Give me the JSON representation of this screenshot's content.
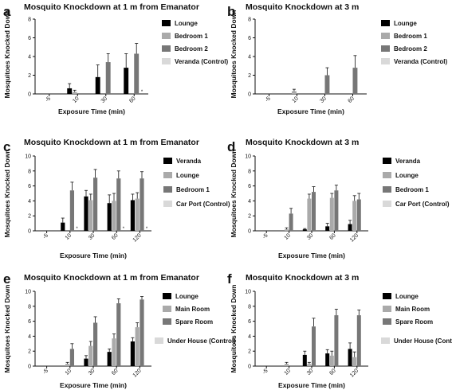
{
  "chart_data": [
    {
      "panel": "a",
      "type": "bar",
      "title": "Mosquito Knockdown at 1 m from Emanator",
      "xlabel": "Exposure Time (min)",
      "ylabel": "Mosquitoes Knocked Down",
      "categories": [
        "-5",
        "10",
        "30",
        "60"
      ],
      "ylim": [
        0,
        8
      ],
      "yticks": [
        "0",
        "2",
        "4",
        "6",
        "8"
      ],
      "series": [
        {
          "name": "Lounge",
          "color": "#000000",
          "values": [
            0,
            0.6,
            1.8,
            2.8
          ],
          "errors": [
            0,
            0.5,
            1.3,
            1.5
          ]
        },
        {
          "name": "Bedroom 1",
          "color": "#aaaaaa",
          "values": [
            0,
            0.2,
            0,
            0
          ],
          "errors": [
            0,
            0.2,
            0,
            0
          ]
        },
        {
          "name": "Bedroom 2",
          "color": "#777777",
          "values": [
            0,
            0,
            3.4,
            4.3
          ],
          "errors": [
            0,
            0,
            0.9,
            1.1
          ]
        },
        {
          "name": "Veranda (Control)",
          "color": "#d9d9d9",
          "values": [
            0,
            0,
            0,
            0
          ],
          "errors": [
            0,
            0,
            0,
            0
          ]
        }
      ],
      "markers": [
        {
          "cat": 3,
          "series": 3,
          "text": "*"
        }
      ]
    },
    {
      "panel": "b",
      "type": "bar",
      "title": "Mosquito Knockdown at 3 m",
      "xlabel": "Exposure Time (min)",
      "ylabel": "Mosquitoes Knocked Down",
      "categories": [
        "-5",
        "10",
        "30",
        "60"
      ],
      "ylim": [
        0,
        8
      ],
      "yticks": [
        "0",
        "2",
        "4",
        "6",
        "8"
      ],
      "series": [
        {
          "name": "Lounge",
          "color": "#000000",
          "values": [
            0,
            0,
            0,
            0
          ],
          "errors": [
            0,
            0,
            0,
            0
          ]
        },
        {
          "name": "Bedroom 1",
          "color": "#aaaaaa",
          "values": [
            0,
            0.3,
            0,
            0
          ],
          "errors": [
            0,
            0.2,
            0,
            0
          ]
        },
        {
          "name": "Bedroom 2",
          "color": "#777777",
          "values": [
            0,
            0,
            2.0,
            2.8
          ],
          "errors": [
            0,
            0,
            0.8,
            1.3
          ]
        },
        {
          "name": "Veranda (Control)",
          "color": "#d9d9d9",
          "values": [
            0,
            0,
            0,
            0
          ],
          "errors": [
            0,
            0,
            0,
            0
          ]
        }
      ],
      "markers": []
    },
    {
      "panel": "c",
      "type": "bar",
      "title": "Mosquito Knockdown at 1 m from Emanator",
      "xlabel": "Exposure Time (min)",
      "ylabel": "Mosquitoes Knocked Down",
      "categories": [
        "-5",
        "10",
        "30",
        "60",
        "120"
      ],
      "ylim": [
        0,
        10
      ],
      "yticks": [
        "0",
        "2",
        "4",
        "6",
        "8",
        "10"
      ],
      "series": [
        {
          "name": "Veranda",
          "color": "#000000",
          "values": [
            0,
            1.1,
            4.6,
            3.7,
            4.1
          ],
          "errors": [
            0,
            0.6,
            0.8,
            1.1,
            0.8
          ]
        },
        {
          "name": "Lounge",
          "color": "#aaaaaa",
          "values": [
            0,
            0,
            4.1,
            4.0,
            4.3
          ],
          "errors": [
            0,
            0,
            0.8,
            1.0,
            0.8
          ]
        },
        {
          "name": "Bedroom 1",
          "color": "#777777",
          "values": [
            0,
            5.4,
            7.1,
            7.0,
            7.0
          ],
          "errors": [
            0,
            1.1,
            1.1,
            1.0,
            0.9
          ]
        },
        {
          "name": "Car Port (Control)",
          "color": "#d9d9d9",
          "values": [
            0,
            0,
            0,
            0,
            0
          ],
          "errors": [
            0,
            0,
            0,
            0,
            0
          ]
        }
      ],
      "markers": [
        {
          "cat": 1,
          "series": 3,
          "text": "*"
        },
        {
          "cat": 3,
          "series": 3,
          "text": "*"
        },
        {
          "cat": 4,
          "series": 3,
          "text": "*"
        }
      ]
    },
    {
      "panel": "d",
      "type": "bar",
      "title": "Mosquito Knockdown at 3 m",
      "xlabel": "Exposure Time (min)",
      "ylabel": "Mosquitoes Knocked Down",
      "categories": [
        "-5",
        "10",
        "30",
        "60",
        "120"
      ],
      "ylim": [
        0,
        10
      ],
      "yticks": [
        "0",
        "2",
        "4",
        "6",
        "8",
        "10"
      ],
      "series": [
        {
          "name": "Veranda",
          "color": "#000000",
          "values": [
            0,
            0,
            0.2,
            0.6,
            0.9
          ],
          "errors": [
            0,
            0,
            0.1,
            0.4,
            0.5
          ]
        },
        {
          "name": "Lounge",
          "color": "#aaaaaa",
          "values": [
            0,
            0.2,
            4.3,
            4.4,
            4.0
          ],
          "errors": [
            0,
            0.2,
            0.6,
            0.6,
            0.7
          ]
        },
        {
          "name": "Bedroom 1",
          "color": "#777777",
          "values": [
            0,
            2.3,
            5.2,
            5.4,
            4.2
          ],
          "errors": [
            0,
            0.7,
            0.7,
            0.7,
            0.8
          ]
        },
        {
          "name": "Car Port (Control)",
          "color": "#d9d9d9",
          "values": [
            0,
            0,
            0,
            0,
            0
          ],
          "errors": [
            0,
            0,
            0,
            0,
            0
          ]
        }
      ],
      "markers": []
    },
    {
      "panel": "e",
      "type": "bar",
      "title": "Mosquito Knockdown at 1 m from Emanator",
      "xlabel": "Exposure Time (min)",
      "ylabel": "Mosquitoes Knocked Down",
      "categories": [
        "-5",
        "10",
        "30",
        "60",
        "120"
      ],
      "ylim": [
        0,
        10
      ],
      "yticks": [
        "0",
        "2",
        "4",
        "6",
        "8",
        "10"
      ],
      "series": [
        {
          "name": "Lounge",
          "color": "#000000",
          "values": [
            0,
            0,
            1.0,
            1.9,
            3.3
          ],
          "errors": [
            0,
            0,
            0.4,
            0.4,
            0.5
          ]
        },
        {
          "name": "Main Room",
          "color": "#aaaaaa",
          "values": [
            0,
            0.3,
            2.7,
            3.7,
            5.2
          ],
          "errors": [
            0,
            0.2,
            0.6,
            0.6,
            0.6
          ]
        },
        {
          "name": "Spare Room",
          "color": "#777777",
          "values": [
            0,
            2.3,
            5.8,
            8.4,
            8.9
          ],
          "errors": [
            0,
            0.7,
            0.8,
            0.6,
            0.4
          ]
        },
        {
          "name": "Under House (Control)",
          "color": "#d9d9d9",
          "values": [
            0,
            0,
            0,
            0,
            0
          ],
          "errors": [
            0,
            0,
            0,
            0,
            0
          ]
        }
      ],
      "markers": []
    },
    {
      "panel": "f",
      "type": "bar",
      "title": "Mosquito Knockdown at 3 m",
      "xlabel": "Exposure Time (min)",
      "ylabel": "Mosquitoes Knocked Down",
      "categories": [
        "-5",
        "10",
        "30",
        "60",
        "120"
      ],
      "ylim": [
        0,
        10
      ],
      "yticks": [
        "0",
        "2",
        "4",
        "6",
        "8",
        "10"
      ],
      "series": [
        {
          "name": "Lounge",
          "color": "#000000",
          "values": [
            0,
            0,
            1.5,
            1.7,
            2.3
          ],
          "errors": [
            0,
            0,
            0.5,
            0.5,
            0.8
          ]
        },
        {
          "name": "Main Room",
          "color": "#aaaaaa",
          "values": [
            0,
            0.3,
            0.3,
            1.4,
            1.2
          ],
          "errors": [
            0,
            0.2,
            0.2,
            0.6,
            0.7
          ]
        },
        {
          "name": "Spare Room",
          "color": "#777777",
          "values": [
            0,
            0,
            5.3,
            6.8,
            6.8
          ],
          "errors": [
            0,
            0,
            1.1,
            0.8,
            0.7
          ]
        },
        {
          "name": "Under House (Control)",
          "color": "#d9d9d9",
          "values": [
            0,
            0,
            0,
            0,
            0
          ],
          "errors": [
            0,
            0,
            0,
            0,
            0
          ]
        }
      ],
      "markers": []
    }
  ]
}
